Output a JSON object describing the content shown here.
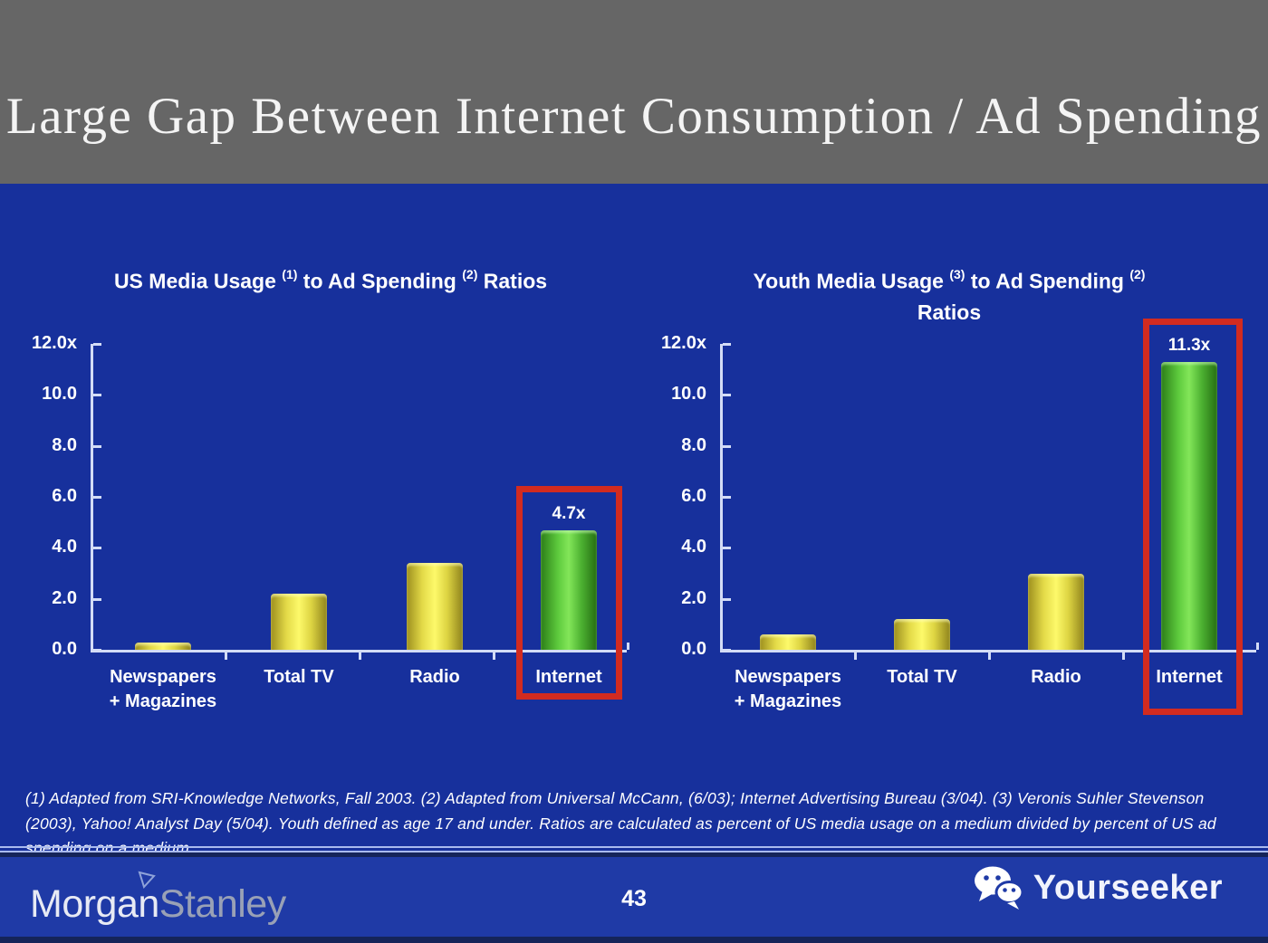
{
  "header": {
    "title": "Large Gap Between Internet Consumption / Ad Spending"
  },
  "chart_data": [
    {
      "type": "bar",
      "title": "US Media Usage (1) to Ad Spending (2) Ratios",
      "title_segments": [
        {
          "text": "US Media Usage "
        },
        {
          "sup": "(1)"
        },
        {
          "text": " to Ad Spending "
        },
        {
          "sup": "(2)"
        },
        {
          "text": " Ratios"
        }
      ],
      "categories": [
        "Newspapers + Magazines",
        "Total TV",
        "Radio",
        "Internet"
      ],
      "category_label_lines": [
        [
          "Newspapers",
          "+ Magazines"
        ],
        [
          "Total TV"
        ],
        [
          "Radio"
        ],
        [
          "Internet"
        ]
      ],
      "values": [
        0.3,
        2.2,
        3.4,
        4.7
      ],
      "bar_palette": [
        "yellow",
        "yellow",
        "yellow",
        "green"
      ],
      "highlight": {
        "index": 3,
        "data_label": "4.7x",
        "box_color": "#D22B20"
      },
      "yticks": [
        {
          "label": "12.0x",
          "value": 12
        },
        {
          "label": "10.0",
          "value": 10
        },
        {
          "label": "8.0",
          "value": 8
        },
        {
          "label": "6.0",
          "value": 6
        },
        {
          "label": "4.0",
          "value": 4
        },
        {
          "label": "2.0",
          "value": 2
        },
        {
          "label": "0.0",
          "value": 0
        }
      ],
      "ylim": [
        0,
        12
      ],
      "grid": false,
      "legend": "none"
    },
    {
      "type": "bar",
      "title": "Youth Media Usage (3) to Ad Spending (2) Ratios",
      "title_segments": [
        {
          "text": "Youth Media Usage "
        },
        {
          "sup": "(3)"
        },
        {
          "text": " to Ad Spending "
        },
        {
          "sup": "(2)"
        },
        {
          "break": true
        },
        {
          "text": "Ratios"
        }
      ],
      "categories": [
        "Newspapers + Magazines",
        "Total TV",
        "Radio",
        "Internet"
      ],
      "category_label_lines": [
        [
          "Newspapers",
          "+ Magazines"
        ],
        [
          "Total TV"
        ],
        [
          "Radio"
        ],
        [
          "Internet"
        ]
      ],
      "values": [
        0.6,
        1.2,
        3.0,
        11.3
      ],
      "bar_palette": [
        "yellow",
        "yellow",
        "yellow",
        "green"
      ],
      "highlight": {
        "index": 3,
        "data_label": "11.3x",
        "box_color": "#D22B20"
      },
      "yticks": [
        {
          "label": "12.0x",
          "value": 12
        },
        {
          "label": "10.0",
          "value": 10
        },
        {
          "label": "8.0",
          "value": 8
        },
        {
          "label": "6.0",
          "value": 6
        },
        {
          "label": "4.0",
          "value": 4
        },
        {
          "label": "2.0",
          "value": 2
        },
        {
          "label": "0.0",
          "value": 0
        }
      ],
      "ylim": [
        0,
        12
      ],
      "grid": false,
      "legend": "none"
    }
  ],
  "footnote": {
    "text": "(1) Adapted from SRI-Knowledge Networks, Fall 2003.  (2) Adapted from Universal McCann, (6/03); Internet Advertising Bureau (3/04). (3) Veronis Suhler Stevenson (2003), Yahoo! Analyst Day (5/04).  Youth defined as age 17 and under.  Ratios are calculated as percent of US media usage on a medium divided by percent of US ad spending on a medium."
  },
  "footer": {
    "page_number": "43",
    "logo": {
      "part1": "Morgan",
      "part2": "Stanley"
    },
    "watermark": {
      "label": "Yourseeker",
      "icon": "wechat-icon"
    }
  },
  "colors": {
    "header_bg": "#666666",
    "slide_bg": "#17309C",
    "footer_band_bg": "#1F3AA6",
    "axis": "#D3DCF6",
    "text": "#FFFFFF",
    "bar_yellow": "#F0E84A",
    "bar_green": "#5CC83E",
    "highlight_red": "#D22B20"
  }
}
